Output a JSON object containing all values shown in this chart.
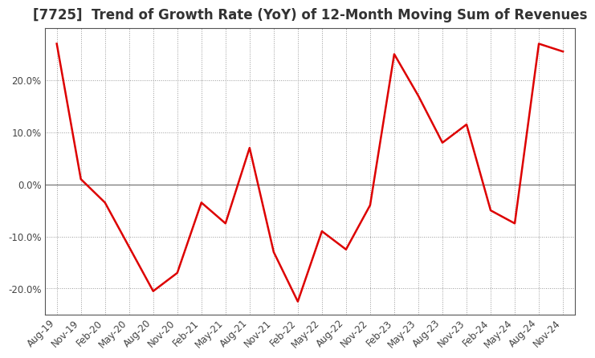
{
  "title": "[7725]  Trend of Growth Rate (YoY) of 12-Month Moving Sum of Revenues",
  "x_labels": [
    "Aug-19",
    "Nov-19",
    "Feb-20",
    "May-20",
    "Aug-20",
    "Nov-20",
    "Feb-21",
    "May-21",
    "Aug-21",
    "Nov-21",
    "Feb-22",
    "May-22",
    "Aug-22",
    "Nov-22",
    "Feb-23",
    "May-23",
    "Aug-23",
    "Nov-23",
    "Feb-24",
    "May-24",
    "Aug-24",
    "Nov-24"
  ],
  "y_values": [
    27.0,
    1.0,
    -3.5,
    -12.0,
    -20.5,
    -17.0,
    -3.5,
    -7.5,
    7.0,
    -13.0,
    -22.5,
    -9.0,
    -12.5,
    -4.0,
    25.0,
    17.0,
    8.0,
    11.5,
    -5.0,
    -7.5,
    27.0,
    25.5
  ],
  "line_color": "#dd0000",
  "line_width": 1.8,
  "ylim": [
    -25,
    30
  ],
  "yticks": [
    -20.0,
    -10.0,
    0.0,
    10.0,
    20.0
  ],
  "ytick_labels": [
    "-20.0%",
    "-10.0%",
    "0.0%",
    "10.0%",
    "20.0%"
  ],
  "grid_color": "#999999",
  "bg_color": "#ffffff",
  "plot_bg_color": "#ffffff",
  "title_fontsize": 12,
  "tick_fontsize": 8.5,
  "title_color": "#333333",
  "spine_color": "#555555",
  "zero_line_color": "#777777"
}
